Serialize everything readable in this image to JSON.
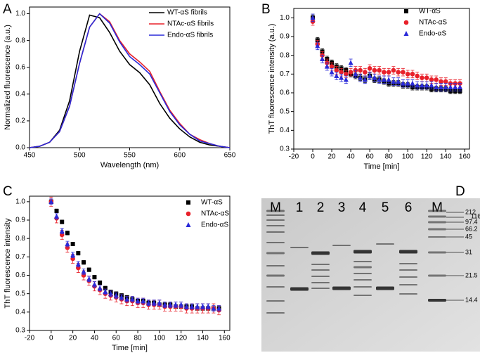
{
  "chart_data": [
    {
      "type": "line",
      "panel": "A",
      "xlabel": "Wavelength (nm)",
      "ylabel": "Normalized fluorescence (a.u.)",
      "x": [
        450,
        460,
        470,
        480,
        490,
        500,
        510,
        520,
        530,
        540,
        550,
        560,
        570,
        580,
        590,
        600,
        610,
        620,
        630,
        640,
        650
      ],
      "series": [
        {
          "name": "WT-αS fibrils",
          "color": "#000000",
          "values": [
            0,
            0.01,
            0.04,
            0.13,
            0.35,
            0.72,
            0.99,
            0.97,
            0.86,
            0.72,
            0.62,
            0.56,
            0.47,
            0.33,
            0.22,
            0.14,
            0.08,
            0.04,
            0.02,
            0.01,
            0
          ]
        },
        {
          "name": "NTAc-αS fibrils",
          "color": "#e8202a",
          "values": [
            0,
            0.01,
            0.04,
            0.12,
            0.31,
            0.63,
            0.9,
            1.0,
            0.94,
            0.8,
            0.7,
            0.64,
            0.57,
            0.42,
            0.28,
            0.18,
            0.1,
            0.06,
            0.03,
            0.01,
            0
          ]
        },
        {
          "name": "Endo-αS fibrils",
          "color": "#2a2ad8",
          "values": [
            0,
            0.01,
            0.04,
            0.12,
            0.31,
            0.63,
            0.9,
            1.0,
            0.93,
            0.79,
            0.68,
            0.62,
            0.55,
            0.41,
            0.27,
            0.17,
            0.1,
            0.05,
            0.03,
            0.01,
            0
          ]
        }
      ],
      "xlim": [
        450,
        650
      ],
      "xticks": [
        450,
        500,
        550,
        600,
        650
      ],
      "ylim": [
        0,
        1.05
      ],
      "yticks": [
        {
          "value": 0,
          "label": "0.0"
        },
        0.2,
        0.4,
        0.6,
        0.8,
        {
          "value": 1,
          "label": "1.0"
        }
      ]
    },
    {
      "type": "scatter",
      "panel": "B",
      "xlabel": "Time [min]",
      "ylabel": "ThT fluorescence intensity (a.u.)",
      "x": [
        0,
        5,
        10,
        15,
        20,
        25,
        30,
        35,
        40,
        45,
        50,
        55,
        60,
        65,
        70,
        75,
        80,
        85,
        90,
        95,
        100,
        105,
        110,
        115,
        120,
        125,
        130,
        135,
        140,
        145,
        150,
        155
      ],
      "series": [
        {
          "name": "WT-αS",
          "color": "#000000",
          "marker": "square",
          "error": 0.015,
          "values": [
            1.0,
            0.88,
            0.82,
            0.78,
            0.76,
            0.74,
            0.73,
            0.72,
            0.7,
            0.69,
            0.68,
            0.67,
            0.69,
            0.67,
            0.67,
            0.66,
            0.65,
            0.65,
            0.65,
            0.64,
            0.64,
            0.63,
            0.63,
            0.63,
            0.63,
            0.62,
            0.62,
            0.62,
            0.62,
            0.61,
            0.61,
            0.61
          ]
        },
        {
          "name": "NTAc-αS",
          "color": "#e8202a",
          "marker": "circle",
          "error": 0.02,
          "values": [
            0.98,
            0.86,
            0.8,
            0.76,
            0.74,
            0.72,
            0.71,
            0.7,
            0.71,
            0.72,
            0.72,
            0.71,
            0.73,
            0.72,
            0.72,
            0.71,
            0.71,
            0.72,
            0.71,
            0.71,
            0.7,
            0.7,
            0.69,
            0.68,
            0.68,
            0.67,
            0.67,
            0.66,
            0.66,
            0.65,
            0.65,
            0.65
          ]
        },
        {
          "name": "Endo-αS",
          "color": "#2a2ad8",
          "marker": "triangle",
          "error": 0.02,
          "values": [
            1.0,
            0.85,
            0.78,
            0.74,
            0.71,
            0.69,
            0.68,
            0.67,
            0.76,
            0.7,
            0.68,
            0.67,
            0.69,
            0.68,
            0.67,
            0.67,
            0.67,
            0.66,
            0.66,
            0.65,
            0.65,
            0.65,
            0.64,
            0.64,
            0.64,
            0.64,
            0.63,
            0.63,
            0.63,
            0.63,
            0.63,
            0.63
          ]
        }
      ],
      "xlim": [
        -20,
        165
      ],
      "xticks": [
        -20,
        0,
        20,
        40,
        60,
        80,
        100,
        120,
        140,
        160
      ],
      "ylim": [
        0.3,
        1.05
      ],
      "yticks": [
        0.3,
        0.4,
        0.5,
        0.6,
        0.7,
        0.8,
        0.9,
        {
          "value": 1,
          "label": "1.0"
        }
      ]
    },
    {
      "type": "scatter",
      "panel": "C",
      "xlabel": "Time [min]",
      "ylabel": "ThT fluorescence intensity",
      "x": [
        0,
        5,
        10,
        15,
        20,
        25,
        30,
        35,
        40,
        45,
        50,
        55,
        60,
        65,
        70,
        75,
        80,
        85,
        90,
        95,
        100,
        105,
        110,
        115,
        120,
        125,
        130,
        135,
        140,
        145,
        150,
        155
      ],
      "series": [
        {
          "name": "WT-αS",
          "color": "#000000",
          "marker": "square",
          "error": 0.01,
          "values": [
            1.0,
            0.95,
            0.89,
            0.83,
            0.77,
            0.72,
            0.67,
            0.63,
            0.59,
            0.56,
            0.53,
            0.51,
            0.5,
            0.49,
            0.48,
            0.47,
            0.46,
            0.46,
            0.45,
            0.45,
            0.44,
            0.44,
            0.44,
            0.43,
            0.43,
            0.43,
            0.43,
            0.42,
            0.42,
            0.42,
            0.42,
            0.42
          ]
        },
        {
          "name": "NTAc-αS",
          "color": "#e8202a",
          "marker": "circle",
          "error": 0.025,
          "values": [
            1.0,
            0.91,
            0.82,
            0.75,
            0.69,
            0.64,
            0.6,
            0.57,
            0.54,
            0.52,
            0.5,
            0.49,
            0.48,
            0.47,
            0.46,
            0.46,
            0.45,
            0.45,
            0.44,
            0.44,
            0.44,
            0.43,
            0.43,
            0.43,
            0.43,
            0.42,
            0.42,
            0.42,
            0.42,
            0.42,
            0.42,
            0.41
          ]
        },
        {
          "name": "Endo-αS",
          "color": "#2a2ad8",
          "marker": "triangle",
          "error": 0.015,
          "values": [
            1.0,
            0.92,
            0.84,
            0.77,
            0.71,
            0.66,
            0.62,
            0.58,
            0.55,
            0.53,
            0.51,
            0.5,
            0.49,
            0.48,
            0.47,
            0.47,
            0.46,
            0.46,
            0.45,
            0.45,
            0.45,
            0.44,
            0.44,
            0.44,
            0.44,
            0.43,
            0.43,
            0.43,
            0.43,
            0.43,
            0.42,
            0.42
          ]
        }
      ],
      "xlim": [
        -20,
        165
      ],
      "xticks": [
        -20,
        0,
        20,
        40,
        60,
        80,
        100,
        120,
        140,
        160
      ],
      "ylim": [
        0.3,
        1.03
      ],
      "yticks": [
        0.3,
        0.4,
        0.5,
        0.6,
        0.7,
        0.8,
        0.9,
        {
          "value": 1,
          "label": "1.0"
        }
      ]
    },
    {
      "type": "gel",
      "panel": "D",
      "lanes": [
        "M",
        "1",
        "2",
        "3",
        "4",
        "5",
        "6",
        "M"
      ],
      "markers": [
        212,
        116,
        97.4,
        66.2,
        45,
        31,
        21.5,
        14.4
      ]
    }
  ]
}
